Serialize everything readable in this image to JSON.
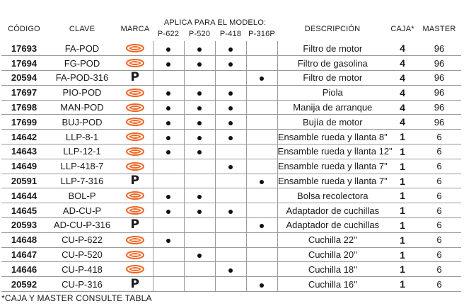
{
  "headers": {
    "codigo": "CÓDIGO",
    "clave": "CLAVE",
    "marca": "MARCA",
    "aplica": "APLICA PARA EL MODELO:",
    "models": [
      "P-622",
      "P-520",
      "P-418",
      "P-316P"
    ],
    "descripcion": "DESCRIPCIÓN",
    "caja": "CAJA*",
    "master": "MASTER"
  },
  "rows": [
    {
      "codigo": "17693",
      "clave": "FA-POD",
      "marca": "truper",
      "models": [
        true,
        true,
        true,
        false
      ],
      "descripcion": "Filtro de motor",
      "caja": "4",
      "master": "96"
    },
    {
      "codigo": "17694",
      "clave": "FG-POD",
      "marca": "truper",
      "models": [
        true,
        true,
        true,
        false
      ],
      "descripcion": "Filtro de gasolina",
      "caja": "4",
      "master": "96"
    },
    {
      "codigo": "20594",
      "clave": "FA-POD-316",
      "marca": "P",
      "models": [
        false,
        false,
        false,
        true
      ],
      "descripcion": "Filtro de motor",
      "caja": "4",
      "master": "96"
    },
    {
      "codigo": "17697",
      "clave": "PIO-POD",
      "marca": "truper",
      "models": [
        true,
        true,
        true,
        false
      ],
      "descripcion": "Piola",
      "caja": "4",
      "master": "96"
    },
    {
      "codigo": "17698",
      "clave": "MAN-POD",
      "marca": "truper",
      "models": [
        true,
        true,
        true,
        false
      ],
      "descripcion": "Manija de arranque",
      "caja": "4",
      "master": "96"
    },
    {
      "codigo": "17699",
      "clave": "BUJ-POD",
      "marca": "truper",
      "models": [
        true,
        true,
        true,
        false
      ],
      "descripcion": "Bujía de motor",
      "caja": "4",
      "master": "96"
    },
    {
      "codigo": "14642",
      "clave": "LLP-8-1",
      "marca": "truper",
      "models": [
        true,
        true,
        true,
        false
      ],
      "descripcion": "Ensamble rueda y llanta 8\"",
      "caja": "1",
      "master": "6"
    },
    {
      "codigo": "14643",
      "clave": "LLP-12-1",
      "marca": "truper",
      "models": [
        true,
        true,
        false,
        false
      ],
      "descripcion": "Ensamble rueda y llanta 12\"",
      "caja": "1",
      "master": "6"
    },
    {
      "codigo": "14649",
      "clave": "LLP-418-7",
      "marca": "truper",
      "models": [
        false,
        false,
        true,
        false
      ],
      "descripcion": "Ensamble rueda y llanta 7\"",
      "caja": "1",
      "master": "6"
    },
    {
      "codigo": "20591",
      "clave": "LLP-7-316",
      "marca": "P",
      "models": [
        false,
        false,
        false,
        true
      ],
      "descripcion": "Ensamble rueda y llanta 7\"",
      "caja": "1",
      "master": "6"
    },
    {
      "codigo": "14644",
      "clave": "BOL-P",
      "marca": "truper",
      "models": [
        true,
        true,
        false,
        false
      ],
      "descripcion": "Bolsa recolectora",
      "caja": "1",
      "master": "6"
    },
    {
      "codigo": "14645",
      "clave": "AD-CU-P",
      "marca": "truper",
      "models": [
        true,
        true,
        true,
        false
      ],
      "descripcion": "Adaptador de cuchillas",
      "caja": "1",
      "master": "6"
    },
    {
      "codigo": "20593",
      "clave": "AD-CU-P-316",
      "marca": "P",
      "models": [
        false,
        false,
        false,
        true
      ],
      "descripcion": "Adaptador de cuchillas",
      "caja": "1",
      "master": "6"
    },
    {
      "codigo": "14648",
      "clave": "CU-P-622",
      "marca": "truper",
      "models": [
        true,
        false,
        false,
        false
      ],
      "descripcion": "Cuchilla 22\"",
      "caja": "1",
      "master": "6"
    },
    {
      "codigo": "14647",
      "clave": "CU-P-520",
      "marca": "truper",
      "models": [
        false,
        true,
        false,
        false
      ],
      "descripcion": "Cuchilla 20\"",
      "caja": "1",
      "master": "6"
    },
    {
      "codigo": "14646",
      "clave": "CU-P-418",
      "marca": "truper",
      "models": [
        false,
        false,
        true,
        false
      ],
      "descripcion": "Cuchilla 18\"",
      "caja": "1",
      "master": "6"
    },
    {
      "codigo": "20592",
      "clave": "CU-P-316",
      "marca": "P",
      "models": [
        false,
        false,
        false,
        true
      ],
      "descripcion": "Cuchilla 16\"",
      "caja": "1",
      "master": "6"
    }
  ],
  "footnote": "*CAJA Y MASTER CONSULTE TABLA",
  "colors": {
    "truper_orange": "#f26522",
    "text": "#1a1a1a",
    "rule": "#9a9a9a"
  },
  "icons": {
    "truper": "truper-logo-icon",
    "P": "pretul-logo-icon"
  }
}
